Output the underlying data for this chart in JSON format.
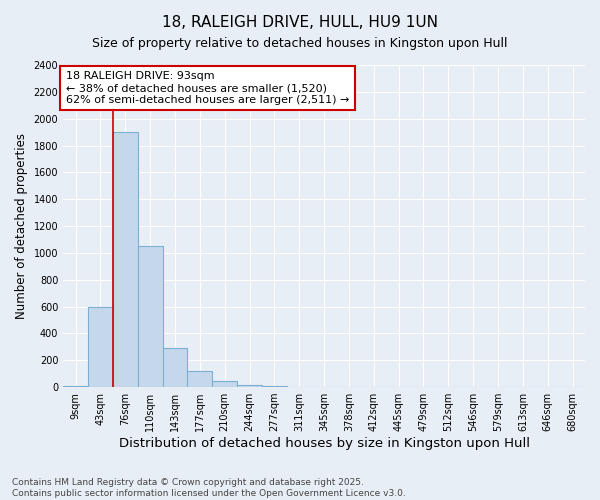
{
  "title": "18, RALEIGH DRIVE, HULL, HU9 1UN",
  "subtitle": "Size of property relative to detached houses in Kingston upon Hull",
  "xlabel": "Distribution of detached houses by size in Kingston upon Hull",
  "ylabel": "Number of detached properties",
  "categories": [
    "9sqm",
    "43sqm",
    "76sqm",
    "110sqm",
    "143sqm",
    "177sqm",
    "210sqm",
    "244sqm",
    "277sqm",
    "311sqm",
    "345sqm",
    "378sqm",
    "412sqm",
    "445sqm",
    "479sqm",
    "512sqm",
    "546sqm",
    "579sqm",
    "613sqm",
    "646sqm",
    "680sqm"
  ],
  "values": [
    10,
    600,
    1900,
    1050,
    290,
    120,
    48,
    18,
    5,
    0,
    0,
    0,
    0,
    0,
    0,
    0,
    0,
    0,
    0,
    0,
    0
  ],
  "bar_color": "#c5d8eb",
  "bar_edge_color": "#7bafd4",
  "annotation_line1": "18 RALEIGH DRIVE: 93sqm",
  "annotation_line2": "← 38% of detached houses are smaller (1,520)",
  "annotation_line3": "62% of semi-detached houses are larger (2,511) →",
  "annotation_box_color": "white",
  "annotation_box_edge": "#cc0000",
  "red_line_bar_index": 2,
  "ylim": [
    0,
    2400
  ],
  "yticks": [
    0,
    200,
    400,
    600,
    800,
    1000,
    1200,
    1400,
    1600,
    1800,
    2000,
    2200,
    2400
  ],
  "footnote": "Contains HM Land Registry data © Crown copyright and database right 2025.\nContains public sector information licensed under the Open Government Licence v3.0.",
  "background_color": "#e8eef5",
  "grid_color": "#ffffff",
  "title_fontsize": 11,
  "subtitle_fontsize": 9,
  "xlabel_fontsize": 9.5,
  "ylabel_fontsize": 8.5,
  "tick_fontsize": 7,
  "annotation_fontsize": 8,
  "footnote_fontsize": 6.5
}
